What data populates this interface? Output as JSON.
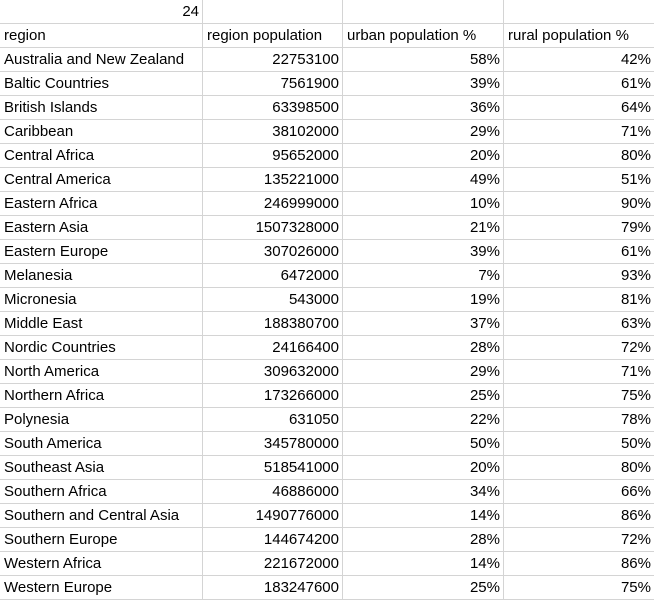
{
  "top_cell": "24",
  "headers": [
    "region",
    "region population",
    "urban population %",
    "rural population %"
  ],
  "rows": [
    [
      "Australia and New Zealand",
      "22753100",
      "58%",
      "42%"
    ],
    [
      "Baltic Countries",
      "7561900",
      "39%",
      "61%"
    ],
    [
      "British Islands",
      "63398500",
      "36%",
      "64%"
    ],
    [
      "Caribbean",
      "38102000",
      "29%",
      "71%"
    ],
    [
      "Central Africa",
      "95652000",
      "20%",
      "80%"
    ],
    [
      "Central America",
      "135221000",
      "49%",
      "51%"
    ],
    [
      "Eastern Africa",
      "246999000",
      "10%",
      "90%"
    ],
    [
      "Eastern Asia",
      "1507328000",
      "21%",
      "79%"
    ],
    [
      "Eastern Europe",
      "307026000",
      "39%",
      "61%"
    ],
    [
      "Melanesia",
      "6472000",
      "7%",
      "93%"
    ],
    [
      "Micronesia",
      "543000",
      "19%",
      "81%"
    ],
    [
      "Middle East",
      "188380700",
      "37%",
      "63%"
    ],
    [
      "Nordic Countries",
      "24166400",
      "28%",
      "72%"
    ],
    [
      "North America",
      "309632000",
      "29%",
      "71%"
    ],
    [
      "Northern Africa",
      "173266000",
      "25%",
      "75%"
    ],
    [
      "Polynesia",
      "631050",
      "22%",
      "78%"
    ],
    [
      "South America",
      "345780000",
      "50%",
      "50%"
    ],
    [
      "Southeast Asia",
      "518541000",
      "20%",
      "80%"
    ],
    [
      "Southern Africa",
      "46886000",
      "34%",
      "66%"
    ],
    [
      "Southern and Central Asia",
      "1490776000",
      "14%",
      "86%"
    ],
    [
      "Southern Europe",
      "144674200",
      "28%",
      "72%"
    ],
    [
      "Western Africa",
      "221672000",
      "14%",
      "86%"
    ],
    [
      "Western Europe",
      "183247600",
      "25%",
      "75%"
    ]
  ]
}
